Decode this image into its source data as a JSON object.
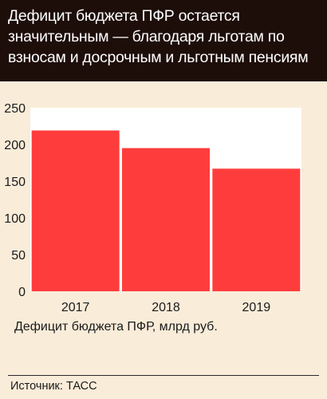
{
  "header": {
    "title": "Дефицит бюджета ПФР остается значительным — благодаря льготам по взносам и досрочным и льготным пенсиям"
  },
  "footer": {
    "source": "Источник: ТАСС"
  },
  "colors": {
    "header_bg": "#1e0e0a",
    "page_bg": "#f9ecd9",
    "plot_bg": "#ffffff",
    "bar": "#ff3c3c"
  },
  "chart_data": {
    "type": "bar",
    "title": "Дефицит бюджета ПФР остается значительным — благодаря льготам по взносам и досрочным и льготным пенсиям",
    "categories": [
      "2017",
      "2018",
      "2019"
    ],
    "series": [
      {
        "name": "Дефицит бюджета ПФР, млрд руб.",
        "values": [
          219,
          195,
          167
        ]
      }
    ],
    "xlabel": "",
    "ylabel": "",
    "ylim": [
      0,
      250
    ],
    "yticks": [
      "0",
      "50",
      "100",
      "150",
      "200",
      "250"
    ],
    "grid": false,
    "legend": "bottom-left"
  }
}
